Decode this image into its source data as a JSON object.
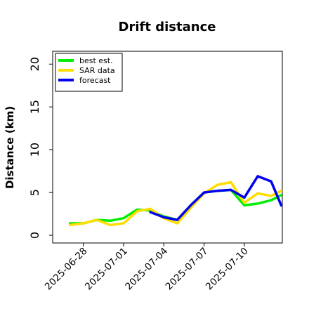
{
  "chart_data": {
    "type": "line",
    "title": "Drift distance",
    "xlabel": "",
    "ylabel": "Distance (km)",
    "ylim": [
      -0.9,
      21.5
    ],
    "xlim": [
      "2025-06-25T17:00",
      "2025-07-12T20:00"
    ],
    "yticks": [
      0,
      5,
      10,
      15,
      20
    ],
    "xticks": [
      "2025-06-28",
      "2025-07-01",
      "2025-07-04",
      "2025-07-07",
      "2025-07-10"
    ],
    "grid": false,
    "legend_position": "top-left",
    "series": [
      {
        "name": "best est.",
        "color": "#00ee00",
        "x": [
          "2025-06-27",
          "2025-06-28",
          "2025-06-29",
          "2025-06-30",
          "2025-07-01",
          "2025-07-02",
          "2025-07-03",
          "2025-07-04",
          "2025-07-05",
          "2025-07-06",
          "2025-07-07",
          "2025-07-08",
          "2025-07-09",
          "2025-07-10",
          "2025-07-11",
          "2025-07-12",
          "2025-07-12T18:00"
        ],
        "values": [
          1.4,
          1.4,
          1.8,
          1.7,
          2.0,
          3.0,
          2.9,
          2.2,
          1.8,
          3.5,
          5.0,
          5.2,
          5.3,
          3.5,
          3.7,
          4.1,
          4.7
        ]
      },
      {
        "name": "SAR data",
        "color": "#ffdd00",
        "x": [
          "2025-06-27",
          "2025-06-28",
          "2025-06-29",
          "2025-06-30",
          "2025-07-01",
          "2025-07-02",
          "2025-07-03",
          "2025-07-04",
          "2025-07-05",
          "2025-07-06",
          "2025-07-07",
          "2025-07-08",
          "2025-07-09",
          "2025-07-10",
          "2025-07-11",
          "2025-07-12",
          "2025-07-12T18:00"
        ],
        "values": [
          1.2,
          1.4,
          1.8,
          1.2,
          1.4,
          2.8,
          3.1,
          2.0,
          1.4,
          3.2,
          4.9,
          5.9,
          6.2,
          3.8,
          4.9,
          4.6,
          5.2
        ]
      },
      {
        "name": "forecast",
        "color": "#0000ee",
        "x": [
          "2025-07-03",
          "2025-07-04",
          "2025-07-05",
          "2025-07-06",
          "2025-07-07",
          "2025-07-08",
          "2025-07-09",
          "2025-07-10",
          "2025-07-11",
          "2025-07-12",
          "2025-07-12T18:00"
        ],
        "values": [
          2.7,
          2.1,
          1.8,
          3.5,
          5.0,
          5.2,
          5.3,
          4.4,
          6.9,
          6.3,
          3.5
        ]
      }
    ]
  }
}
